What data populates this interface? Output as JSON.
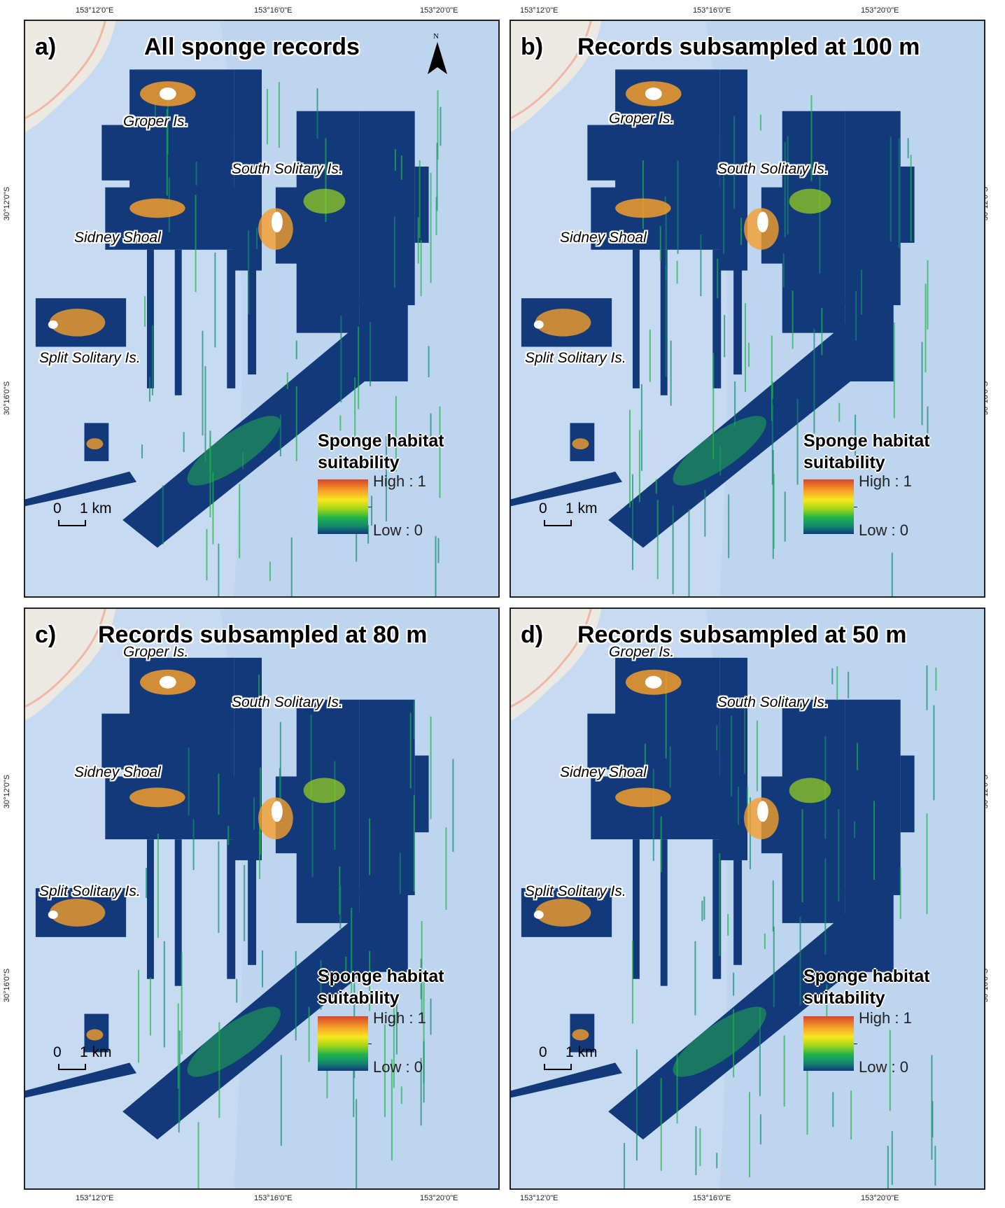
{
  "coords": {
    "top_lon": [
      "153°12'0\"E",
      "153°16'0\"E",
      "153°20'0\"E"
    ],
    "bottom_lon": [
      "153°12'0\"E",
      "153°16'0\"E",
      "153°20'0\"E"
    ],
    "lat": [
      "30°12'0\"S",
      "30°16'0\"S"
    ]
  },
  "panels": [
    {
      "label": "a)",
      "title": "All sponge records"
    },
    {
      "label": "b)",
      "title": "Records subsampled at 100 m"
    },
    {
      "label": "c)",
      "title": "Records subsampled at 80 m"
    },
    {
      "label": "d)",
      "title": "Records subsampled at 50 m"
    }
  ],
  "places": {
    "groper": "Groper Is.",
    "south_solitary": "South Solitary Is.",
    "sidney": "Sidney Shoal",
    "split": "Split Solitary Is."
  },
  "legend": {
    "title_line1": "Sponge habitat",
    "title_line2": "suitability",
    "high": "High : 1",
    "low": "Low : 0",
    "ramp_colors": [
      "#d9452b",
      "#f59d2a",
      "#f8e71c",
      "#9bd41a",
      "#1fb34a",
      "#138a6e",
      "#123a7a"
    ]
  },
  "scale": {
    "zero": "0",
    "one": "1 km"
  },
  "north": {
    "letter": "N"
  },
  "colors": {
    "sea": "#c6dbf1",
    "sea_deep": "#b7d1ee",
    "land": "#ece9e2",
    "road": "#f2b6a6",
    "low_suitability": "#123a7a",
    "high_suitability": "#d9452b"
  }
}
